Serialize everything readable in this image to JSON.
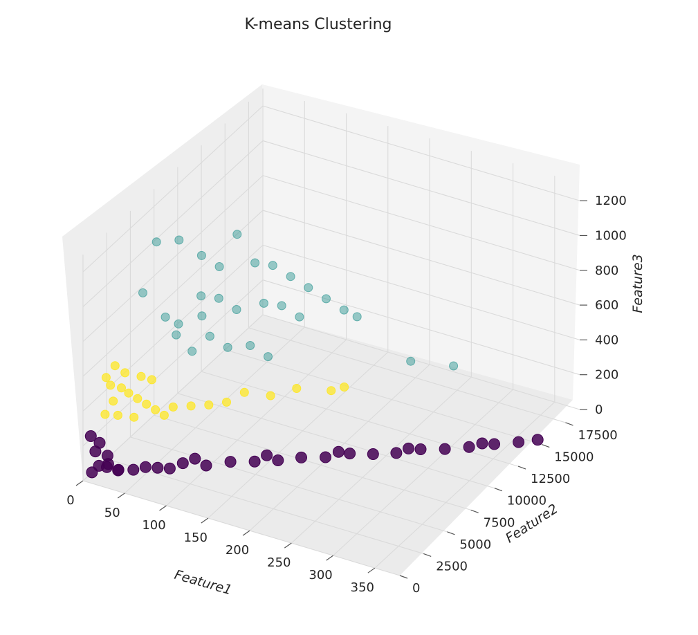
{
  "chart_data": {
    "type": "scatter",
    "projection": "3d",
    "title": "K-means Clustering",
    "xlabel": "Feature1",
    "ylabel": "Feature2",
    "zlabel": "Feature3",
    "xlim": [
      0,
      380
    ],
    "ylim": [
      0,
      19000
    ],
    "zlim": [
      0,
      1300
    ],
    "xticks": [
      0,
      50,
      100,
      150,
      200,
      250,
      300,
      350
    ],
    "yticks": [
      0,
      2500,
      5000,
      7500,
      10000,
      12500,
      15000,
      17500
    ],
    "zticks": [
      0,
      200,
      400,
      600,
      800,
      1000,
      1200
    ],
    "grid": true,
    "legend": "none",
    "colormap": "viridis",
    "clusters": [
      {
        "cluster": 0,
        "color": "#440154",
        "opacity": 0.85,
        "count_shown": "dense"
      },
      {
        "cluster": 1,
        "color": "#21918c",
        "opacity": 0.45
      },
      {
        "cluster": 2,
        "color": "#fde725",
        "opacity": 0.75
      }
    ],
    "series": [
      {
        "cluster": 0,
        "points_xyz": [
          [
            5,
            500,
            30
          ],
          [
            10,
            800,
            60
          ],
          [
            15,
            1200,
            40
          ],
          [
            20,
            900,
            80
          ],
          [
            25,
            1500,
            20
          ],
          [
            30,
            1100,
            50
          ],
          [
            40,
            1800,
            30
          ],
          [
            50,
            2200,
            40
          ],
          [
            60,
            2600,
            30
          ],
          [
            70,
            3000,
            20
          ],
          [
            80,
            3500,
            40
          ],
          [
            100,
            4200,
            20
          ],
          [
            120,
            5000,
            30
          ],
          [
            140,
            5800,
            20
          ],
          [
            160,
            6500,
            20
          ],
          [
            180,
            7200,
            30
          ],
          [
            200,
            8000,
            20
          ],
          [
            220,
            8800,
            30
          ],
          [
            240,
            9500,
            20
          ],
          [
            260,
            10200,
            20
          ],
          [
            280,
            11000,
            30
          ],
          [
            300,
            11800,
            20
          ],
          [
            320,
            12600,
            20
          ],
          [
            340,
            13500,
            20
          ],
          [
            360,
            14300,
            20
          ],
          [
            375,
            15000,
            20
          ],
          [
            8,
            600,
            150
          ],
          [
            12,
            700,
            200
          ],
          [
            18,
            1000,
            120
          ],
          [
            6,
            300,
            250
          ],
          [
            90,
            3900,
            60
          ],
          [
            150,
            6200,
            50
          ],
          [
            210,
            8500,
            40
          ],
          [
            270,
            10600,
            40
          ],
          [
            330,
            13100,
            30
          ]
        ]
      },
      {
        "cluster": 1,
        "points_xyz": [
          [
            20,
            6000,
            1100
          ],
          [
            30,
            7500,
            1050
          ],
          [
            15,
            5000,
            850
          ],
          [
            40,
            9000,
            900
          ],
          [
            50,
            10000,
            800
          ],
          [
            60,
            11000,
            950
          ],
          [
            45,
            8500,
            700
          ],
          [
            55,
            9500,
            650
          ],
          [
            70,
            12000,
            750
          ],
          [
            35,
            7000,
            600
          ],
          [
            65,
            10500,
            550
          ],
          [
            80,
            13000,
            700
          ],
          [
            90,
            14000,
            600
          ],
          [
            75,
            12500,
            500
          ],
          [
            50,
            9000,
            450
          ],
          [
            40,
            8000,
            400
          ],
          [
            85,
            13500,
            450
          ],
          [
            100,
            15000,
            500
          ],
          [
            60,
            10000,
            350
          ],
          [
            70,
            11500,
            300
          ],
          [
            95,
            14500,
            350
          ],
          [
            110,
            16000,
            400
          ],
          [
            120,
            17000,
            300
          ],
          [
            130,
            17500,
            250
          ],
          [
            80,
            12500,
            200
          ],
          [
            200,
            17000,
            120
          ],
          [
            240,
            18000,
            100
          ],
          [
            25,
            6500,
            650
          ],
          [
            30,
            7200,
            520
          ],
          [
            45,
            8600,
            580
          ]
        ]
      },
      {
        "cluster": 2,
        "points_xyz": [
          [
            5,
            2000,
            500
          ],
          [
            10,
            2500,
            550
          ],
          [
            8,
            2200,
            450
          ],
          [
            12,
            3000,
            400
          ],
          [
            15,
            3500,
            350
          ],
          [
            6,
            1800,
            300
          ],
          [
            10,
            2800,
            250
          ],
          [
            20,
            4000,
            300
          ],
          [
            25,
            4500,
            250
          ],
          [
            18,
            3800,
            200
          ],
          [
            30,
            5000,
            200
          ],
          [
            35,
            5500,
            150
          ],
          [
            40,
            6000,
            180
          ],
          [
            50,
            7000,
            150
          ],
          [
            60,
            8000,
            120
          ],
          [
            70,
            9000,
            100
          ],
          [
            80,
            10000,
            120
          ],
          [
            100,
            11000,
            80
          ],
          [
            120,
            12000,
            100
          ],
          [
            150,
            13000,
            80
          ],
          [
            160,
            13500,
            90
          ],
          [
            22,
            4200,
            420
          ],
          [
            14,
            3200,
            480
          ],
          [
            28,
            4800,
            380
          ],
          [
            9,
            2400,
            350
          ]
        ]
      }
    ]
  }
}
